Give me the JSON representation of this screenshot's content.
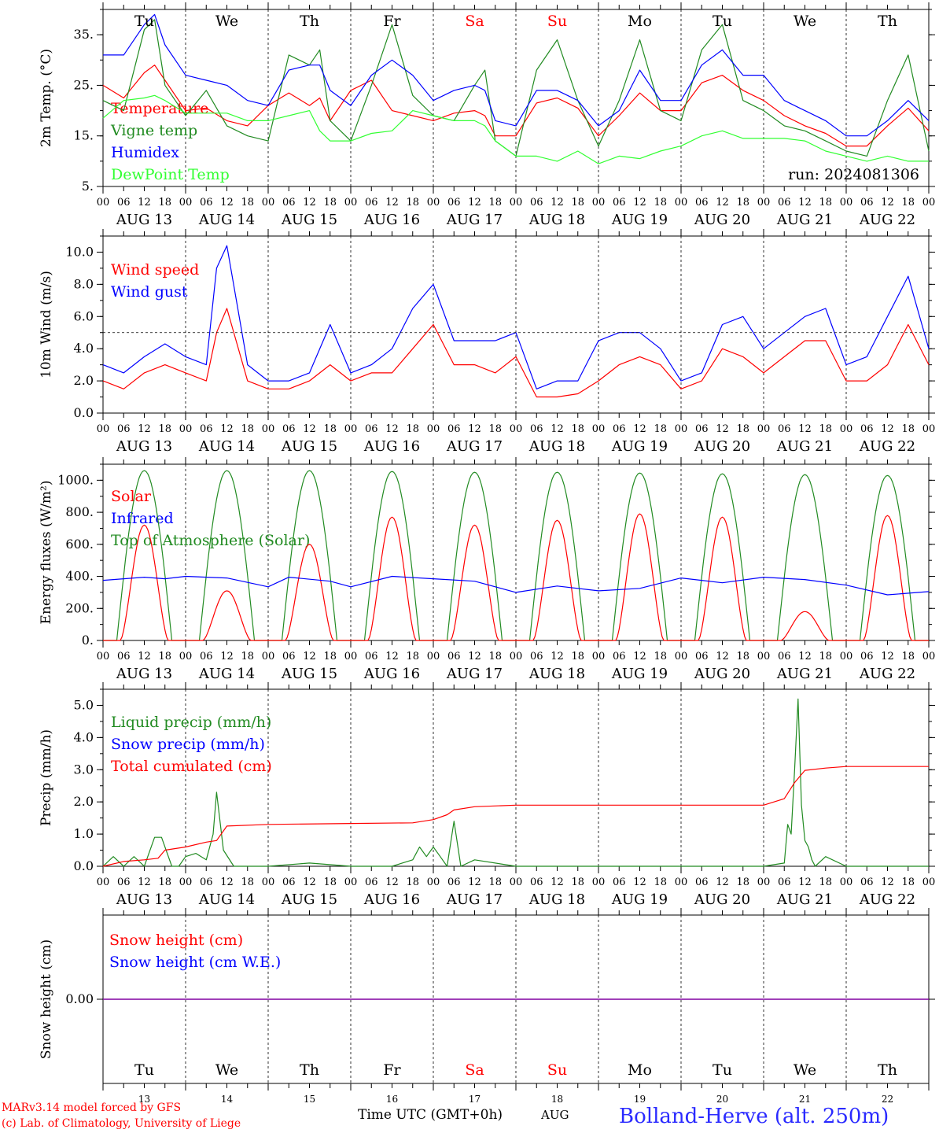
{
  "footer": {
    "credit_line1": "MARv3.14 model forced by GFS",
    "credit_line2": "(c) Lab. of Climatology, University of Liege",
    "time_axis_label": "Time UTC (GMT+0h)",
    "month_label": "AUG",
    "station": "Bolland-Herve (alt. 250m)"
  },
  "colors": {
    "red": "#ff0000",
    "green": "#228b22",
    "blue": "#0000ff",
    "light_green": "#32ff32",
    "purple": "#8000a0",
    "station_blue": "#2a2aff"
  },
  "time": {
    "hour_ticks": [
      "00",
      "06",
      "12",
      "18"
    ],
    "end_tick": "00",
    "dates": [
      "AUG 13",
      "AUG 14",
      "AUG 15",
      "AUG 16",
      "AUG 17",
      "AUG 18",
      "AUG 19",
      "AUG 20",
      "AUG 21",
      "AUG 22"
    ],
    "weekdays": [
      "Tu",
      "We",
      "Th",
      "Fr",
      "Sa",
      "Su",
      "Mo",
      "Tu",
      "We",
      "Th"
    ],
    "weekend_days": [
      4,
      5
    ],
    "day_numbers": [
      "13",
      "14",
      "15",
      "16",
      "17",
      "18",
      "19",
      "20",
      "21",
      "22"
    ]
  },
  "chart_data": [
    {
      "type": "line",
      "ylabel": "2m Temp. (°C)",
      "ylim": [
        5,
        40
      ],
      "yticks": [
        5,
        15,
        25,
        35
      ],
      "ytick_labels": [
        "5.",
        "15.",
        "25.",
        "35."
      ],
      "annotation": "run: 2024081306",
      "legend": [
        {
          "label": "Temperature",
          "color": "#ff0000"
        },
        {
          "label": "Vigne temp",
          "color": "#228b22"
        },
        {
          "label": "Humidex",
          "color": "#0000ff"
        },
        {
          "label": "DewPoint Temp",
          "color": "#32ff32"
        }
      ],
      "x_hours": [
        0,
        6,
        12,
        15,
        18,
        24,
        30,
        36,
        42,
        48,
        54,
        60,
        63,
        66,
        72,
        78,
        84,
        90,
        96,
        102,
        108,
        111,
        114,
        120,
        126,
        132,
        138,
        144,
        150,
        156,
        162,
        168,
        174,
        180,
        186,
        192,
        198,
        204,
        210,
        216,
        222,
        228,
        234,
        240
      ],
      "series": [
        {
          "name": "Temperature",
          "color": "#ff0000",
          "values": [
            25,
            22.5,
            27.5,
            29,
            26,
            20,
            20.5,
            18,
            17,
            21,
            23.5,
            21,
            22.5,
            18,
            24,
            26,
            20,
            19,
            18,
            19.5,
            20,
            19,
            15,
            15,
            21.5,
            22.5,
            20.5,
            15,
            19,
            23.5,
            20,
            20,
            25.5,
            27,
            24,
            22,
            19,
            17,
            15.5,
            13,
            13,
            17,
            20.5,
            16
          ]
        },
        {
          "name": "Vigne temp",
          "color": "#228b22",
          "values": [
            22,
            20,
            36,
            38,
            25,
            19,
            24,
            17,
            15,
            14,
            31,
            29,
            32,
            18,
            14,
            25,
            37,
            23,
            19,
            18,
            25,
            28,
            14,
            11,
            28,
            34,
            22,
            13,
            22,
            34,
            20,
            18,
            32,
            37,
            22,
            20,
            17,
            16,
            14,
            12,
            11,
            22,
            31,
            12
          ]
        },
        {
          "name": "Humidex",
          "color": "#0000ff",
          "values": [
            31,
            31,
            37,
            39,
            33,
            27,
            26,
            25,
            22,
            21,
            28,
            29,
            29,
            24,
            21,
            27,
            30,
            27,
            22,
            24,
            25,
            24,
            18,
            17,
            24,
            24,
            22,
            17,
            20,
            28,
            22,
            22,
            29,
            32,
            27,
            27,
            22,
            20,
            18,
            15,
            15,
            18,
            22,
            18
          ]
        },
        {
          "name": "DewPoint Temp",
          "color": "#32ff32",
          "values": [
            18.5,
            22,
            22.5,
            23,
            22,
            19.5,
            19.5,
            19.5,
            18,
            18,
            19,
            20,
            16,
            14,
            14,
            15.5,
            16,
            20,
            19,
            18,
            18,
            17,
            14,
            11,
            11,
            10,
            12,
            9.5,
            11,
            10.5,
            12,
            13,
            15,
            16,
            14.5,
            14.5,
            14.5,
            14,
            12,
            11,
            10,
            11,
            10,
            10
          ]
        }
      ]
    },
    {
      "type": "line",
      "ylabel": "10m Wind (m/s)",
      "ylim": [
        0,
        11
      ],
      "yticks": [
        0,
        2,
        4,
        6,
        8,
        10
      ],
      "ytick_labels": [
        "0.0",
        "2.0",
        "4.0",
        "6.0",
        "8.0",
        "10.0"
      ],
      "reference_line": 5,
      "legend": [
        {
          "label": "Wind speed",
          "color": "#ff0000"
        },
        {
          "label": "Wind gust",
          "color": "#0000ff"
        }
      ],
      "x_hours": [
        0,
        6,
        12,
        18,
        24,
        30,
        33,
        36,
        42,
        48,
        54,
        60,
        66,
        72,
        78,
        84,
        90,
        96,
        102,
        108,
        114,
        120,
        126,
        132,
        138,
        144,
        150,
        156,
        162,
        168,
        174,
        180,
        186,
        192,
        198,
        204,
        210,
        216,
        222,
        228,
        234,
        240
      ],
      "series": [
        {
          "name": "Wind speed",
          "color": "#ff0000",
          "values": [
            2,
            1.5,
            2.5,
            3,
            2.5,
            2,
            5,
            6.5,
            2,
            1.5,
            1.5,
            2,
            3,
            2,
            2.5,
            2.5,
            4,
            5.5,
            3,
            3,
            2.5,
            3.5,
            1,
            1,
            1.2,
            2,
            3,
            3.5,
            3,
            1.5,
            2,
            4,
            3.5,
            2.5,
            3.5,
            4.5,
            4.5,
            2,
            2,
            3,
            5.5,
            3
          ]
        },
        {
          "name": "Wind gust",
          "color": "#0000ff",
          "values": [
            3,
            2.5,
            3.5,
            4.3,
            3.5,
            3,
            9,
            10.4,
            3,
            2,
            2,
            2.5,
            5.5,
            2.5,
            3,
            4,
            6.5,
            8,
            4.5,
            4.5,
            4.5,
            5,
            1.5,
            2,
            2,
            4.5,
            5,
            5,
            4,
            2,
            2.5,
            5.5,
            6,
            4,
            5,
            6,
            6.5,
            3,
            3.5,
            6,
            8.5,
            4
          ]
        }
      ]
    },
    {
      "type": "line",
      "ylabel": "Energy fluxes (W/m²)",
      "ylim": [
        0,
        1100
      ],
      "yticks": [
        0,
        200,
        400,
        600,
        800,
        1000
      ],
      "ytick_labels": [
        "0.",
        "200.",
        "400.",
        "600.",
        "800.",
        "1000."
      ],
      "legend": [
        {
          "label": "Solar",
          "color": "#ff0000"
        },
        {
          "label": "Infrared",
          "color": "#0000ff"
        },
        {
          "label": "Top of Atmosphere (Solar)",
          "color": "#228b22"
        }
      ],
      "solar_peaks": [
        720,
        310,
        600,
        770,
        720,
        750,
        790,
        770,
        180,
        780
      ],
      "toa_peaks": [
        1060,
        1060,
        1060,
        1055,
        1050,
        1050,
        1045,
        1040,
        1035,
        1030
      ],
      "infrared": {
        "x_hours": [
          0,
          12,
          18,
          24,
          36,
          48,
          54,
          66,
          72,
          84,
          96,
          108,
          120,
          132,
          144,
          156,
          168,
          180,
          192,
          204,
          216,
          228,
          240
        ],
        "values": [
          375,
          395,
          385,
          400,
          390,
          335,
          395,
          370,
          335,
          400,
          385,
          370,
          300,
          340,
          310,
          325,
          390,
          360,
          395,
          380,
          345,
          285,
          305
        ]
      }
    },
    {
      "type": "line",
      "ylabel": "Precip (mm/h)",
      "ylim": [
        0,
        5.5
      ],
      "yticks": [
        0,
        1,
        2,
        3,
        4,
        5
      ],
      "ytick_labels": [
        "0.0",
        "1.0",
        "2.0",
        "3.0",
        "4.0",
        "5.0"
      ],
      "legend": [
        {
          "label": "Liquid precip (mm/h)",
          "color": "#228b22"
        },
        {
          "label": "Snow precip (mm/h)",
          "color": "#0000ff"
        },
        {
          "label": "Total cumulated (cm)",
          "color": "#ff0000"
        }
      ],
      "series": [
        {
          "name": "Liquid precip (mm/h)",
          "color": "#228b22",
          "x_hours": [
            0,
            3,
            6,
            9,
            12,
            15,
            17,
            20,
            22,
            24,
            27,
            30,
            32,
            33,
            35,
            38,
            42,
            48,
            60,
            72,
            84,
            90,
            92,
            94,
            96,
            98,
            100,
            102,
            104,
            108,
            120,
            192,
            198,
            199,
            200,
            201,
            202,
            203,
            204,
            205,
            206,
            207,
            210,
            216,
            240
          ],
          "values": [
            0,
            0.3,
            0,
            0.3,
            0,
            0.9,
            0.9,
            0,
            0,
            0.3,
            0.4,
            0.2,
            1,
            2.3,
            0.5,
            0,
            0,
            0,
            0.1,
            0,
            0,
            0.2,
            0.6,
            0.3,
            0.6,
            0.3,
            0,
            1.4,
            0,
            0.2,
            0,
            0,
            0.1,
            1.3,
            1,
            3,
            5.2,
            1.9,
            0.8,
            0.6,
            0.2,
            0,
            0.3,
            0,
            0
          ]
        },
        {
          "name": "Total cumulated (cm)",
          "color": "#ff0000",
          "x_hours": [
            0,
            6,
            12,
            16,
            18,
            24,
            30,
            33,
            36,
            48,
            72,
            90,
            96,
            100,
            102,
            108,
            120,
            144,
            168,
            192,
            198,
            201,
            204,
            210,
            216,
            240
          ],
          "values": [
            0,
            0.15,
            0.2,
            0.25,
            0.5,
            0.6,
            0.75,
            0.8,
            1.25,
            1.3,
            1.33,
            1.35,
            1.45,
            1.6,
            1.75,
            1.85,
            1.9,
            1.9,
            1.9,
            1.9,
            2.1,
            2.6,
            2.98,
            3.05,
            3.1,
            3.1
          ]
        }
      ]
    },
    {
      "type": "line",
      "ylabel": "Snow height (cm)",
      "yticks": [
        0
      ],
      "ytick_labels": [
        "0.00"
      ],
      "legend": [
        {
          "label": "Snow height (cm)",
          "color": "#ff0000"
        },
        {
          "label": "Snow height (cm W.E.)",
          "color": "#0000ff"
        }
      ],
      "series": [
        {
          "name": "Snow height (cm)",
          "color": "#ff0000",
          "x_hours": [
            0,
            240
          ],
          "values": [
            0,
            0
          ]
        },
        {
          "name": "Snow height (cm W.E.)",
          "color": "#0000ff",
          "x_hours": [
            0,
            240
          ],
          "values": [
            0,
            0
          ]
        }
      ]
    }
  ]
}
